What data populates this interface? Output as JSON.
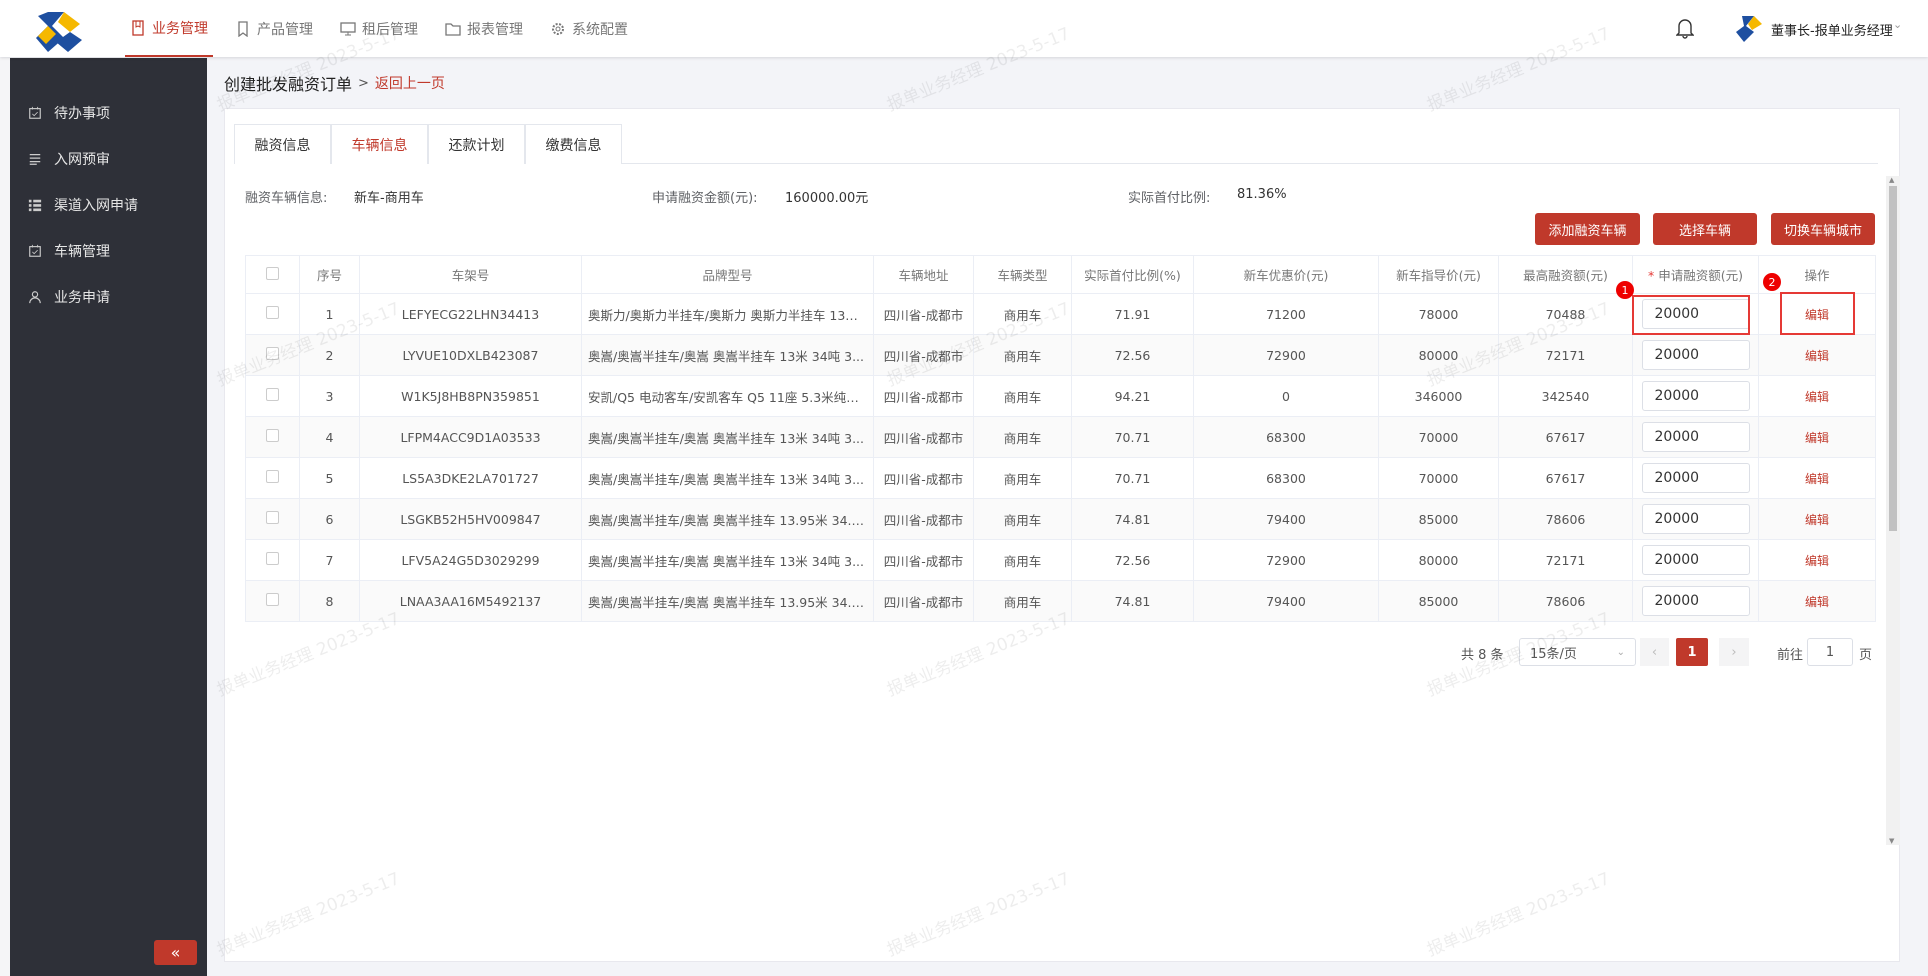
{
  "header": {
    "nav": [
      {
        "label": "业务管理",
        "icon": "book-icon",
        "active": true
      },
      {
        "label": "产品管理",
        "icon": "bookmark-icon"
      },
      {
        "label": "租后管理",
        "icon": "monitor-icon"
      },
      {
        "label": "报表管理",
        "icon": "folder-icon"
      },
      {
        "label": "系统配置",
        "icon": "gear-icon"
      }
    ],
    "user": "董事长-报单业务经理"
  },
  "sidebar": {
    "items": [
      {
        "label": "待办事项",
        "icon": "calendar-icon"
      },
      {
        "label": "入网预审",
        "icon": "list-icon"
      },
      {
        "label": "渠道入网申请",
        "icon": "grid-icon"
      },
      {
        "label": "车辆管理",
        "icon": "calendar-icon"
      },
      {
        "label": "业务申请",
        "icon": "user-icon"
      }
    ],
    "collapse": "«"
  },
  "breadcrumb": {
    "title": "创建批发融资订单",
    "sep": ">",
    "back": "返回上一页"
  },
  "tabs": [
    "融资信息",
    "车辆信息",
    "还款计划",
    "缴费信息"
  ],
  "info": {
    "vehicle_label": "融资车辆信息:",
    "vehicle_value": "新车-商用车",
    "amount_label": "申请融资金额(元):",
    "amount_value": "160000.00元",
    "ratio_label": "实际首付比例:",
    "ratio_value": "81.36%"
  },
  "buttons": {
    "add": "添加融资车辆",
    "select": "选择车辆",
    "switch_city": "切换车辆城市"
  },
  "table": {
    "columns": [
      "",
      "序号",
      "车架号",
      "品牌型号",
      "车辆地址",
      "车辆类型",
      "实际首付比例(%)",
      "新车优惠价(元)",
      "新车指导价(元)",
      "最高融资额(元)",
      "申请融资额(元)",
      "操作"
    ],
    "required_mark": "*",
    "edit_label": "编辑",
    "rows": [
      [
        "1",
        "LEFYECG22LHN34413",
        "奥斯力/奥斯力半挂车/奥斯力 奥斯力半挂车 13米...",
        "四川省-成都市",
        "商用车",
        "71.91",
        "71200",
        "78000",
        "70488",
        "20000"
      ],
      [
        "2",
        "LYVUE10DXLB423087",
        "奥嵩/奥嵩半挂车/奥嵩 奥嵩半挂车 13米 34吨 3...",
        "四川省-成都市",
        "商用车",
        "72.56",
        "72900",
        "80000",
        "72171",
        "20000"
      ],
      [
        "3",
        "W1K5J8HB8PN359851",
        "安凯/Q5 电动客车/安凯客车 Q5 11座 5.3米纯电...",
        "四川省-成都市",
        "商用车",
        "94.21",
        "0",
        "346000",
        "342540",
        "20000"
      ],
      [
        "4",
        "LFPM4ACC9D1A03533",
        "奥嵩/奥嵩半挂车/奥嵩 奥嵩半挂车 13米 34吨 3...",
        "四川省-成都市",
        "商用车",
        "70.71",
        "68300",
        "70000",
        "67617",
        "20000"
      ],
      [
        "5",
        "LS5A3DKE2LA701727",
        "奥嵩/奥嵩半挂车/奥嵩 奥嵩半挂车 13米 34吨 3...",
        "四川省-成都市",
        "商用车",
        "70.71",
        "68300",
        "70000",
        "67617",
        "20000"
      ],
      [
        "6",
        "LSGKB52H5HV009847",
        "奥嵩/奥嵩半挂车/奥嵩 奥嵩半挂车 13.95米 34.8...",
        "四川省-成都市",
        "商用车",
        "74.81",
        "79400",
        "85000",
        "78606",
        "20000"
      ],
      [
        "7",
        "LFV5A24G5D3029299",
        "奥嵩/奥嵩半挂车/奥嵩 奥嵩半挂车 13米 34吨 3...",
        "四川省-成都市",
        "商用车",
        "72.56",
        "72900",
        "80000",
        "72171",
        "20000"
      ],
      [
        "8",
        "LNAA3AA16M5492137",
        "奥嵩/奥嵩半挂车/奥嵩 奥嵩半挂车 13.95米 34.8...",
        "四川省-成都市",
        "商用车",
        "74.81",
        "79400",
        "85000",
        "78606",
        "20000"
      ]
    ]
  },
  "pagination": {
    "total": "共 8 条",
    "page_size": "15条/页",
    "current": "1",
    "goto_label": "前往",
    "goto_value": "1",
    "page_suffix": "页"
  },
  "annotations": [
    "1",
    "2"
  ],
  "watermark": "报单业务经理 2023-5-17",
  "colors": {
    "accent": "#c0392b",
    "sidebar": "#2e3038"
  }
}
